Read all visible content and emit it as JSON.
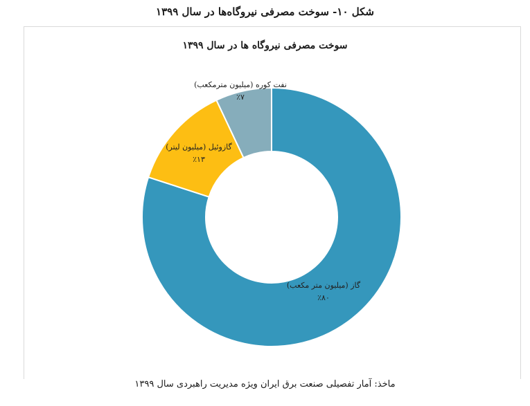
{
  "figure_caption": "شکل ۱۰- سوخت مصرفی نیروگاه‌ها در سال ۱۳۹۹",
  "source_note": "ماخذ: آمار تفصیلی صنعت برق ایران ویژه مدیریت راهبردی سال ۱۳۹۹",
  "chart_data": {
    "type": "pie",
    "donut": true,
    "title": "سوخت مصرفی نیروگاه ها در سال ۱۳۹۹",
    "slices": [
      {
        "label": "گاز (میلیون متر مکعب)",
        "percent_label": "٪۸۰",
        "value": 80,
        "color": "#3597BC"
      },
      {
        "label": "گازوئیل (میلیون لیتر)",
        "percent_label": "٪۱۳",
        "value": 13,
        "color": "#FDBE13"
      },
      {
        "label": "نفت کوره (میلیون مترمکعب)",
        "percent_label": "٪۷",
        "value": 7,
        "color": "#86ADBB"
      }
    ]
  }
}
